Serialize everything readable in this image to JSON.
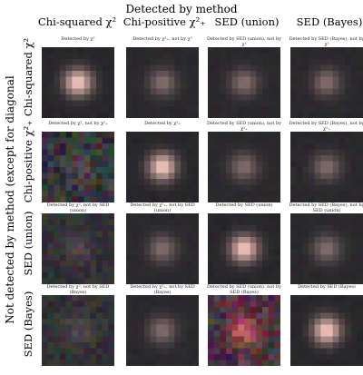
{
  "figure": {
    "top_title": "Detected by method",
    "side_title": "Not detected by method (except for diagonal",
    "columns": [
      {
        "label": "Chi-squared χ²"
      },
      {
        "label": "Chi-positive χ²₊"
      },
      {
        "label": "SED (union)"
      },
      {
        "label": "SED (Bayes)"
      }
    ],
    "rows": [
      {
        "label": "Chi-squared χ²"
      },
      {
        "label": "Chi-positive χ²₊"
      },
      {
        "label": "SED (union)"
      },
      {
        "label": "SED (Bayes)"
      }
    ],
    "captions": [
      [
        "Detected by χ²",
        "Detected by χ²₊, not by χ²",
        "Detected by SED (union), not by χ²",
        "Detected by SED (Bayes), not by χ²"
      ],
      [
        "Detected by χ², not by χ²₊",
        "Detected by χ²₊",
        "Detected by SED (union), not by χ²₊",
        "Detected by SED (Bayes), not by χ²₊"
      ],
      [
        "Detected by χ², not by SED (union)",
        "Detected by χ²₊, not by SED (union)",
        "Detected by SED (union)",
        "Detected by SED (Bayes), not by SED (union)"
      ],
      [
        "Detected by χ², not by SED (Bayes)",
        "Detected by χ²₊, not by SED (Bayes)",
        "Detected by SED (union), not by SED (Bayes)",
        "Detected by SED (Bayes)"
      ]
    ],
    "panels": [
      [
        "bright",
        "faint",
        "faint",
        "faint"
      ],
      [
        "noise",
        "bright",
        "faint",
        "faint"
      ],
      [
        "noise-dim",
        "faint",
        "bright",
        "faint"
      ],
      [
        "noise-dim",
        "faint",
        "noise-red",
        "bright"
      ]
    ]
  }
}
